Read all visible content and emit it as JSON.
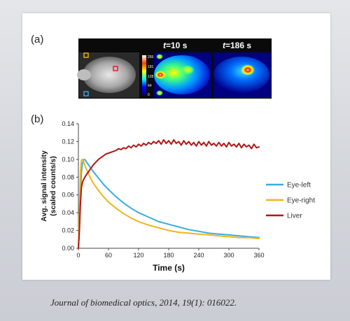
{
  "panel_a_label": "(a)",
  "panel_b_label": "(b)",
  "images": {
    "t1_var": "t",
    "t1_value": "=10 s",
    "t2_var": "t",
    "t2_value": "=186 s",
    "colorbar_ticks": [
      "255",
      "191",
      "128",
      "64",
      "0"
    ]
  },
  "colors": {
    "eye_left": "#39ace0",
    "eye_right": "#f0b41c",
    "liver": "#b31616"
  },
  "caption": "Journal of biomedical optics, 2014, 19(1): 016022.",
  "chart_data": {
    "type": "line",
    "title": "",
    "xlabel": "Time (s)",
    "ylabel_line1": "Avg. signal intensity",
    "ylabel_line2": "(scaled counts/s)",
    "xlim": [
      0,
      360
    ],
    "ylim": [
      0,
      0.14
    ],
    "x_ticks": [
      0,
      60,
      120,
      180,
      240,
      300,
      360
    ],
    "y_ticks": [
      0.0,
      0.02,
      0.04,
      0.06,
      0.08,
      0.1,
      0.12,
      0.14
    ],
    "y_tick_labels": [
      "0.00",
      "0.02",
      "0.04",
      "0.06",
      "0.08",
      "0.10",
      "0.12",
      "0.14"
    ],
    "grid": false,
    "legend_position": "right",
    "series": [
      {
        "name": "Eye-left",
        "color": "#39ace0",
        "x": [
          0,
          2,
          4,
          6,
          8,
          10,
          12,
          14,
          16,
          20,
          25,
          30,
          40,
          50,
          60,
          75,
          90,
          105,
          120,
          140,
          160,
          180,
          200,
          220,
          240,
          260,
          280,
          300,
          320,
          340,
          360
        ],
        "y": [
          0.0,
          0.02,
          0.06,
          0.085,
          0.095,
          0.099,
          0.1,
          0.099,
          0.097,
          0.094,
          0.09,
          0.086,
          0.079,
          0.072,
          0.066,
          0.058,
          0.051,
          0.045,
          0.04,
          0.035,
          0.03,
          0.027,
          0.024,
          0.021,
          0.019,
          0.017,
          0.016,
          0.015,
          0.014,
          0.013,
          0.012
        ]
      },
      {
        "name": "Eye-right",
        "color": "#f0b41c",
        "x": [
          0,
          2,
          4,
          6,
          8,
          10,
          12,
          15,
          20,
          25,
          30,
          40,
          50,
          60,
          75,
          90,
          105,
          120,
          140,
          160,
          180,
          200,
          220,
          240,
          260,
          280,
          300,
          320,
          340,
          360
        ],
        "y": [
          0.0,
          0.04,
          0.085,
          0.099,
          0.1,
          0.098,
          0.095,
          0.09,
          0.084,
          0.078,
          0.073,
          0.065,
          0.058,
          0.052,
          0.045,
          0.039,
          0.034,
          0.03,
          0.026,
          0.023,
          0.02,
          0.018,
          0.017,
          0.016,
          0.015,
          0.014,
          0.013,
          0.012,
          0.012,
          0.011
        ]
      },
      {
        "name": "Liver",
        "color": "#b31616",
        "x": [
          0,
          2,
          4,
          6,
          8,
          10,
          12,
          15,
          20,
          25,
          30,
          35,
          40,
          45,
          50,
          55,
          60,
          65,
          70,
          75,
          80,
          85,
          90,
          95,
          100,
          105,
          110,
          115,
          120,
          125,
          130,
          135,
          140,
          145,
          150,
          155,
          160,
          165,
          170,
          175,
          180,
          185,
          190,
          195,
          200,
          205,
          210,
          215,
          220,
          225,
          230,
          235,
          240,
          245,
          250,
          255,
          260,
          265,
          270,
          275,
          280,
          285,
          290,
          295,
          300,
          305,
          310,
          315,
          320,
          325,
          330,
          335,
          340,
          345,
          350,
          355,
          360
        ],
        "y": [
          0.0,
          0.02,
          0.05,
          0.068,
          0.074,
          0.077,
          0.079,
          0.082,
          0.086,
          0.09,
          0.094,
          0.097,
          0.1,
          0.102,
          0.104,
          0.106,
          0.107,
          0.108,
          0.109,
          0.11,
          0.112,
          0.111,
          0.113,
          0.112,
          0.115,
          0.113,
          0.116,
          0.114,
          0.117,
          0.115,
          0.118,
          0.116,
          0.119,
          0.117,
          0.12,
          0.118,
          0.121,
          0.117,
          0.122,
          0.118,
          0.121,
          0.117,
          0.122,
          0.118,
          0.12,
          0.116,
          0.121,
          0.117,
          0.12,
          0.116,
          0.119,
          0.115,
          0.12,
          0.116,
          0.119,
          0.115,
          0.12,
          0.116,
          0.118,
          0.115,
          0.119,
          0.115,
          0.118,
          0.114,
          0.119,
          0.115,
          0.117,
          0.114,
          0.118,
          0.113,
          0.117,
          0.114,
          0.116,
          0.112,
          0.117,
          0.113,
          0.114
        ]
      }
    ]
  }
}
